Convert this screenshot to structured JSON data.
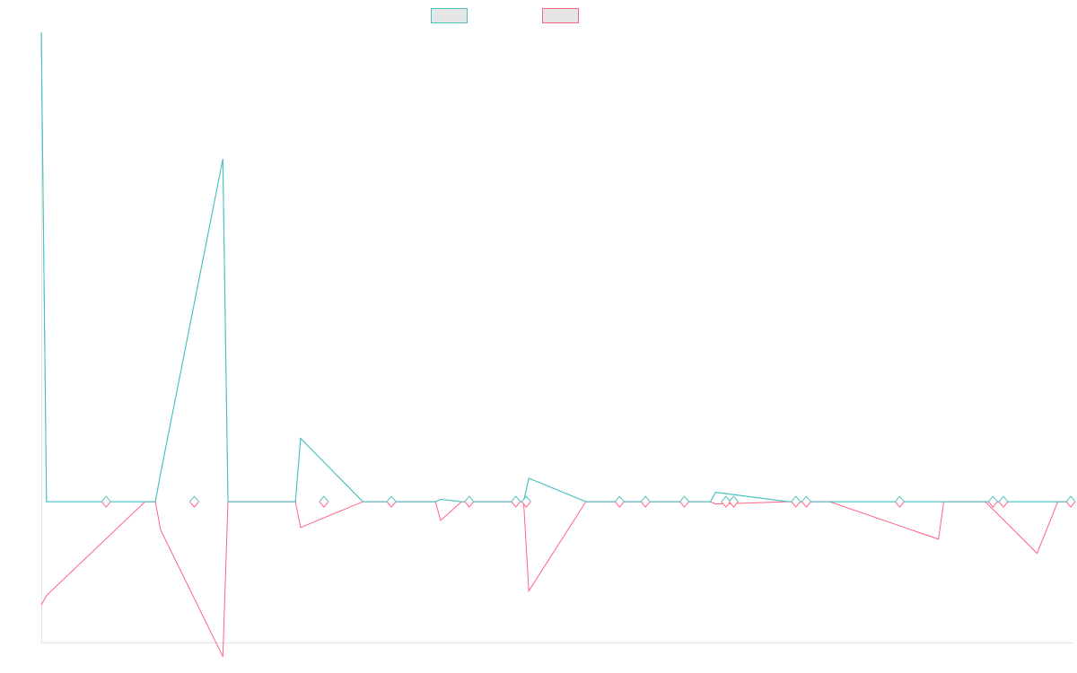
{
  "colors": {
    "series_a": "#4bc0c0",
    "series_b": "#ff6384",
    "legend_fill": "#e6e6e6",
    "axis": "#e2e2e2"
  },
  "chart_data": {
    "type": "line",
    "title": "",
    "xlabel": "",
    "ylabel": "",
    "legend_position": "top",
    "grid": false,
    "x": [
      0,
      1,
      20,
      22,
      23,
      35,
      36,
      37,
      49,
      50,
      62,
      74,
      76,
      77,
      81,
      91,
      93,
      94,
      105,
      112,
      113,
      127,
      129,
      130,
      144,
      149,
      150,
      152,
      173,
      174,
      175,
      182,
      192,
      196,
      197,
      198,
      199
    ],
    "xlim": [
      0,
      199
    ],
    "ylim": [
      -0.3,
      1.0
    ],
    "series": [
      {
        "name": "",
        "color_key": "series_a",
        "values": [
          1.0,
          0.0,
          0.0,
          0.0,
          0.06,
          0.73,
          0.0,
          0.0,
          0.0,
          0.135,
          0.0,
          0.0,
          0.0,
          0.005,
          0.0,
          0.0,
          0.0,
          0.05,
          0.0,
          0.0,
          0.0,
          0.0,
          0.0,
          0.02,
          0.0,
          0.0,
          0.0,
          0.0,
          0.0,
          0.0,
          0.0,
          0.0,
          0.0,
          0.0,
          0.0,
          0.0,
          0.0
        ]
      },
      {
        "name": "",
        "color_key": "series_b",
        "values": [
          -0.22,
          -0.2,
          0.0,
          0.0,
          -0.06,
          -0.33,
          0.0,
          0.0,
          0.0,
          -0.055,
          0.0,
          0.0,
          0.0,
          -0.04,
          0.0,
          0.0,
          0.0,
          -0.19,
          0.0,
          0.0,
          0.0,
          0.0,
          0.0,
          -0.005,
          0.0,
          0.0,
          0.0,
          0.0,
          -0.08,
          0.0,
          0.0,
          0.0,
          -0.11,
          0.0,
          0.0,
          0.0,
          0.0
        ]
      }
    ],
    "markers": [
      {
        "x": 12.5,
        "y": 0.0
      },
      {
        "x": 29.5,
        "y": 0.0
      },
      {
        "x": 54.5,
        "y": 0.0
      },
      {
        "x": 67.5,
        "y": 0.0
      },
      {
        "x": 82.5,
        "y": 0.0
      },
      {
        "x": 91.5,
        "y": 0.0
      },
      {
        "x": 93.5,
        "y": 0.0
      },
      {
        "x": 111.5,
        "y": 0.0
      },
      {
        "x": 116.5,
        "y": 0.0
      },
      {
        "x": 124.0,
        "y": 0.0
      },
      {
        "x": 132.0,
        "y": 0.0
      },
      {
        "x": 133.5,
        "y": 0.0
      },
      {
        "x": 145.5,
        "y": 0.0
      },
      {
        "x": 147.5,
        "y": 0.0
      },
      {
        "x": 165.5,
        "y": 0.0
      },
      {
        "x": 183.5,
        "y": 0.0
      },
      {
        "x": 185.5,
        "y": 0.0
      },
      {
        "x": 198.5,
        "y": 0.0
      }
    ]
  }
}
